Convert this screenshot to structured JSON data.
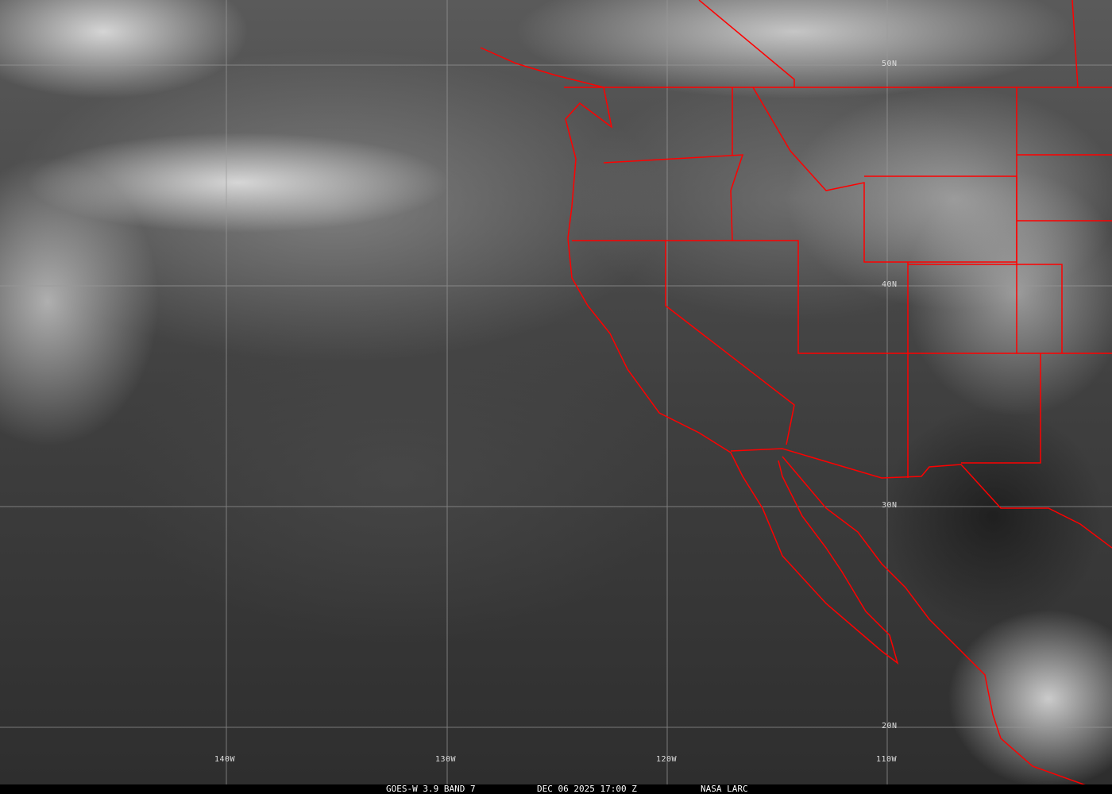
{
  "map": {
    "caption": {
      "satellite": "GOES-W 3.9 BAND 7",
      "datetime": "DEC 06 2025 17:00 Z",
      "source": "NASA LARC"
    },
    "longitude_labels": [
      "140W",
      "130W",
      "120W",
      "110W"
    ],
    "latitude_labels": [
      "50N",
      "40N",
      "30N",
      "20N"
    ],
    "border_color": "#ff0000",
    "grid_color": "#9a9a9a"
  }
}
